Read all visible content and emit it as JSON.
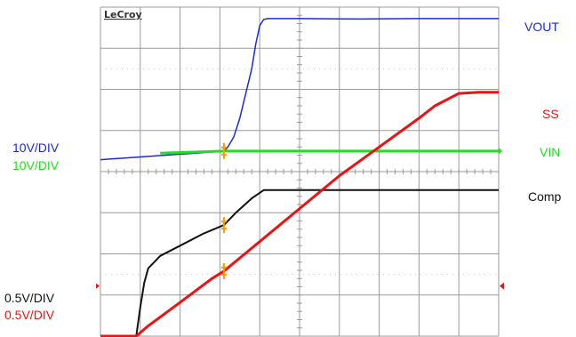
{
  "brand": "LeCroy",
  "colors": {
    "vout": "#1a2bd6",
    "ss": "#ee1111",
    "vin": "#22dd22",
    "comp": "#111111",
    "grid": "#9a9a9a",
    "marker": "#ff9a00"
  },
  "labels": {
    "vout": "VOUT",
    "ss": "SS",
    "vin": "VIN",
    "comp": "Comp",
    "scale_top_1": "10V/DIV",
    "scale_top_2": "10V/DIV",
    "scale_bottom_1": "0.5V/DIV",
    "scale_bottom_2": "0.5V/DIV"
  },
  "chart_data": {
    "type": "line",
    "grid": true,
    "x_divisions": 10,
    "y_divisions": 8,
    "xlim": [
      0,
      10
    ],
    "ylim": [
      0,
      8
    ],
    "series": [
      {
        "name": "VOUT",
        "color": "#1a2bd6",
        "width": 1.5,
        "x": [
          0,
          0.6,
          1.2,
          1.8,
          2.4,
          3.1,
          3.2,
          3.35,
          3.5,
          3.65,
          3.8,
          3.9,
          4.0,
          4.1,
          4.2,
          5.0,
          6.5,
          8.0,
          10
        ],
        "y": [
          4.29,
          4.33,
          4.37,
          4.41,
          4.45,
          4.5,
          4.6,
          4.85,
          5.3,
          5.9,
          6.5,
          7.1,
          7.55,
          7.7,
          7.72,
          7.72,
          7.71,
          7.72,
          7.72
        ]
      },
      {
        "name": "VIN",
        "color": "#22dd22",
        "width": 3,
        "x": [
          1.5,
          3.1,
          10
        ],
        "y": [
          4.45,
          4.5,
          4.5
        ]
      },
      {
        "name": "Comp",
        "color": "#111111",
        "width": 2,
        "x": [
          0,
          0.9,
          1.0,
          1.1,
          1.2,
          1.35,
          1.5,
          2.0,
          2.6,
          3.1,
          3.4,
          3.8,
          4.1,
          4.3,
          10
        ],
        "y": [
          0,
          0,
          0.7,
          1.3,
          1.65,
          1.8,
          1.95,
          2.2,
          2.5,
          2.7,
          3.0,
          3.35,
          3.55,
          3.55,
          3.55
        ]
      },
      {
        "name": "SS",
        "color": "#ee1111",
        "width": 3,
        "x": [
          0,
          0.9,
          1.2,
          2.0,
          2.8,
          3.1,
          4.0,
          5.0,
          6.0,
          7.0,
          8.0,
          8.4,
          9.0,
          9.5,
          10
        ],
        "y": [
          0,
          0,
          0.25,
          0.82,
          1.4,
          1.58,
          2.3,
          3.1,
          3.9,
          4.6,
          5.3,
          5.6,
          5.9,
          5.93,
          5.93
        ]
      }
    ],
    "markers": [
      {
        "x": 3.1,
        "y": 4.5
      },
      {
        "x": 3.1,
        "y": 2.7
      },
      {
        "x": 3.1,
        "y": 1.58
      }
    ]
  }
}
